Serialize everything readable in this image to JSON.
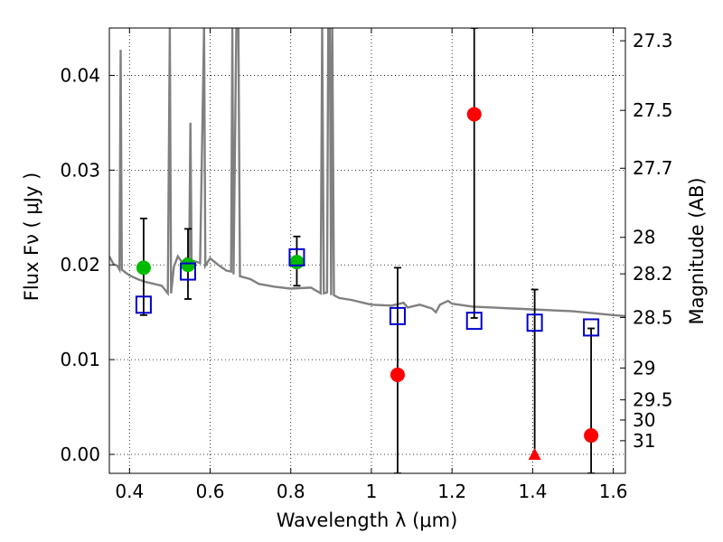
{
  "chart_data": {
    "type": "scatter",
    "xlabel": "Wavelength  λ (μm)",
    "ylabel": "Flux  Fν  ( μJy )",
    "y2label": "Magnitude (AB)",
    "xlim": [
      0.35,
      1.63
    ],
    "ylim": [
      -0.002,
      0.045
    ],
    "grid": true,
    "x_ticks": [
      0.4,
      0.6,
      0.8,
      1.0,
      1.2,
      1.4,
      1.6
    ],
    "x_tick_labels": [
      "0.4",
      "0.6",
      "0.8",
      "1",
      "1.2",
      "1.4",
      "1.6"
    ],
    "y_ticks": [
      0.0,
      0.01,
      0.02,
      0.03,
      0.04
    ],
    "y_tick_labels": [
      "0.00",
      "0.01",
      "0.02",
      "0.03",
      "0.04"
    ],
    "y2_tick_labels": [
      "27.3",
      "27.5",
      "27.7",
      "28",
      "28.2",
      "28.5",
      "29",
      "29.5",
      "30",
      "31"
    ],
    "model_spectrum": {
      "color": "#808080",
      "points": [
        [
          0.35,
          0.0209
        ],
        [
          0.36,
          0.0201
        ],
        [
          0.37,
          0.0199
        ],
        [
          0.375,
          0.0195
        ],
        [
          0.378,
          0.0427
        ],
        [
          0.381,
          0.0195
        ],
        [
          0.39,
          0.0192
        ],
        [
          0.4,
          0.0189
        ],
        [
          0.42,
          0.0185
        ],
        [
          0.44,
          0.0182
        ],
        [
          0.46,
          0.018
        ],
        [
          0.48,
          0.0178
        ],
        [
          0.495,
          0.017
        ],
        [
          0.5,
          0.045
        ],
        [
          0.503,
          0.017
        ],
        [
          0.51,
          0.0198
        ],
        [
          0.52,
          0.0209
        ],
        [
          0.53,
          0.0203
        ],
        [
          0.54,
          0.0207
        ],
        [
          0.548,
          0.0201
        ],
        [
          0.551,
          0.035
        ],
        [
          0.554,
          0.0201
        ],
        [
          0.56,
          0.0204
        ],
        [
          0.575,
          0.0202
        ],
        [
          0.585,
          0.045
        ],
        [
          0.588,
          0.0199
        ],
        [
          0.6,
          0.0207
        ],
        [
          0.62,
          0.02
        ],
        [
          0.64,
          0.0194
        ],
        [
          0.652,
          0.0193
        ],
        [
          0.655,
          0.045
        ],
        [
          0.658,
          0.019
        ],
        [
          0.665,
          0.045
        ],
        [
          0.67,
          0.045
        ],
        [
          0.674,
          0.0188
        ],
        [
          0.7,
          0.0185
        ],
        [
          0.72,
          0.018
        ],
        [
          0.76,
          0.0177
        ],
        [
          0.8,
          0.0175
        ],
        [
          0.85,
          0.0176
        ],
        [
          0.874,
          0.017
        ],
        [
          0.878,
          0.045
        ],
        [
          0.882,
          0.017
        ],
        [
          0.89,
          0.0171
        ],
        [
          0.893,
          0.045
        ],
        [
          0.897,
          0.045
        ],
        [
          0.9,
          0.0168
        ],
        [
          0.903,
          0.045
        ],
        [
          0.907,
          0.0168
        ],
        [
          0.92,
          0.0165
        ],
        [
          0.95,
          0.0163
        ],
        [
          0.98,
          0.016
        ],
        [
          1.0,
          0.0158
        ],
        [
          1.05,
          0.0157
        ],
        [
          1.08,
          0.016
        ],
        [
          1.09,
          0.0155
        ],
        [
          1.12,
          0.0158
        ],
        [
          1.15,
          0.0154
        ],
        [
          1.16,
          0.015
        ],
        [
          1.17,
          0.0158
        ],
        [
          1.19,
          0.0162
        ],
        [
          1.2,
          0.0159
        ],
        [
          1.25,
          0.0156
        ],
        [
          1.3,
          0.0155
        ],
        [
          1.35,
          0.0154
        ],
        [
          1.4,
          0.0153
        ],
        [
          1.45,
          0.0152
        ],
        [
          1.5,
          0.0151
        ],
        [
          1.55,
          0.0149
        ],
        [
          1.6,
          0.0147
        ],
        [
          1.63,
          0.0146
        ]
      ]
    },
    "series": [
      {
        "marker": "circle",
        "color": "#00bb00",
        "points": [
          {
            "x": 0.435,
            "y": 0.0197,
            "yerr_low": 0.005,
            "yerr_high": 0.0052
          },
          {
            "x": 0.545,
            "y": 0.02,
            "yerr_low": 0.0036,
            "yerr_high": 0.0038
          },
          {
            "x": 0.815,
            "y": 0.0203,
            "yerr_low": 0.0025,
            "yerr_high": 0.0027
          }
        ]
      },
      {
        "marker": "circle",
        "color": "#ff0000",
        "points": [
          {
            "x": 1.065,
            "y": 0.0084,
            "yerr_low": 0.0104,
            "yerr_high": 0.0113
          },
          {
            "x": 1.255,
            "y": 0.0359,
            "yerr_low": 0.0215,
            "yerr_high": 0.0091
          },
          {
            "x": 1.545,
            "y": 0.002,
            "yerr_low": 0.004,
            "yerr_high": 0.0113
          }
        ]
      },
      {
        "marker": "triangle",
        "color": "#ff0000",
        "points": [
          {
            "x": 1.405,
            "y": 0.0,
            "yerr_low": 0.0,
            "yerr_high": 0.0174
          }
        ]
      },
      {
        "marker": "open-square",
        "color": "#0000cc",
        "points": [
          {
            "x": 0.435,
            "y": 0.0158
          },
          {
            "x": 0.545,
            "y": 0.0193
          },
          {
            "x": 0.815,
            "y": 0.0208
          },
          {
            "x": 1.065,
            "y": 0.0146
          },
          {
            "x": 1.255,
            "y": 0.0141
          },
          {
            "x": 1.405,
            "y": 0.0139
          },
          {
            "x": 1.545,
            "y": 0.0134
          }
        ]
      }
    ]
  }
}
